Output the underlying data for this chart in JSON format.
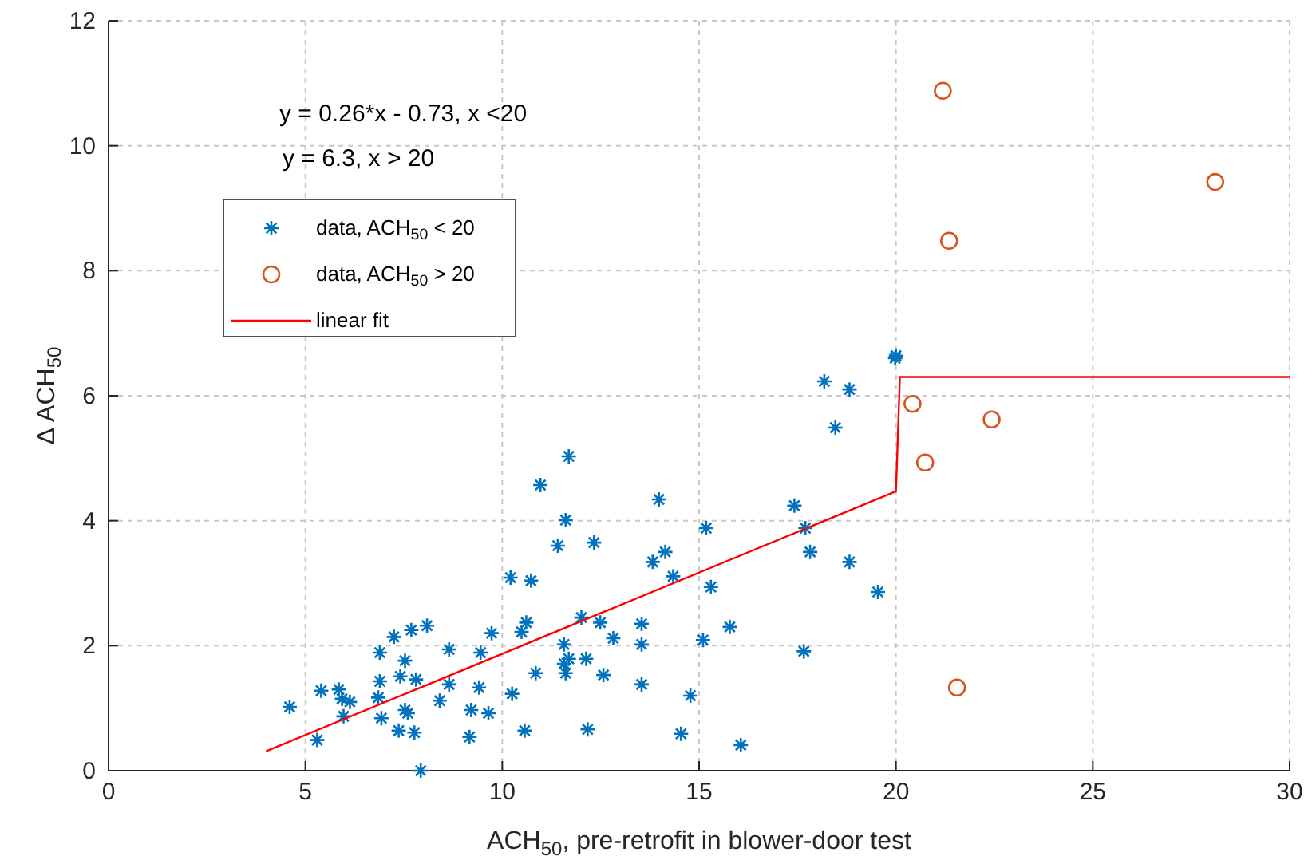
{
  "chart_data": {
    "type": "scatter",
    "xlabel": "ACH$_{50}$, pre-retrofit in blower-door test",
    "ylabel": "Δ ACH$_{50}$",
    "xlim": [
      0,
      30
    ],
    "ylim": [
      0,
      12
    ],
    "xticks": [
      0,
      5,
      10,
      15,
      20,
      25,
      30
    ],
    "yticks": [
      0,
      2,
      4,
      6,
      8,
      10,
      12
    ],
    "grid": true,
    "legend": "top left",
    "annotations": [
      "y = 0.26*x - 0.73, x <20",
      "y = 6.3, x > 20"
    ],
    "series": [
      {
        "name": "data, ACH$_{50}$ < 20",
        "color": "#0072bd",
        "marker": "cross",
        "x": [
          4.6,
          5.3,
          5.4,
          5.85,
          5.93,
          6.13,
          5.97,
          6.93,
          6.85,
          6.89,
          6.89,
          7.53,
          7.25,
          7.69,
          8.09,
          7.41,
          7.81,
          7.37,
          7.77,
          7.53,
          7.6,
          7.93,
          8.41,
          8.65,
          8.65,
          9.45,
          9.21,
          9.17,
          9.41,
          9.65,
          9.73,
          10.25,
          10.57,
          10.21,
          11.69,
          10.97,
          13.98,
          11.61,
          15.18,
          11.41,
          12.33,
          13.82,
          14.14,
          14.34,
          10.73,
          15.3,
          10.61,
          10.49,
          12.01,
          12.49,
          12.82,
          13.54,
          13.54,
          15.1,
          15.78,
          11.57,
          11.69,
          11.57,
          11.61,
          12.13,
          12.57,
          10.85,
          13.54,
          14.78,
          12.17,
          14.54,
          16.06,
          17.42,
          17.7,
          17.82,
          17.66,
          19.98,
          20.0,
          18.18,
          18.82,
          18.46,
          18.82,
          19.54
        ],
        "values": [
          1.02,
          0.49,
          1.28,
          1.3,
          1.15,
          1.1,
          0.87,
          0.84,
          1.17,
          1.43,
          1.89,
          1.76,
          2.14,
          2.25,
          2.32,
          1.51,
          1.46,
          0.64,
          0.61,
          0.97,
          0.92,
          0.0,
          1.12,
          1.94,
          1.38,
          1.89,
          0.97,
          0.54,
          1.33,
          0.92,
          2.2,
          1.23,
          0.64,
          3.09,
          5.03,
          4.57,
          4.34,
          4.01,
          3.88,
          3.6,
          3.65,
          3.34,
          3.5,
          3.11,
          3.04,
          2.94,
          2.37,
          2.22,
          2.45,
          2.37,
          2.12,
          2.35,
          2.02,
          2.09,
          2.3,
          2.02,
          1.79,
          1.71,
          1.56,
          1.79,
          1.53,
          1.56,
          1.38,
          1.2,
          0.66,
          0.59,
          0.41,
          4.24,
          3.88,
          3.5,
          1.91,
          6.6,
          6.64,
          6.23,
          6.1,
          5.49,
          3.34,
          2.86
        ]
      },
      {
        "name": "data, ACH$_{50}$ > 20",
        "color": "#d95319",
        "marker": "circle",
        "x": [
          20.42,
          20.74,
          21.55,
          21.19,
          21.35,
          22.43,
          28.11
        ],
        "values": [
          5.87,
          4.93,
          1.33,
          10.88,
          8.48,
          5.62,
          9.42
        ]
      },
      {
        "name": "linear fit",
        "type": "line",
        "color": "#ff0000",
        "marker": "none",
        "x": [
          4,
          20,
          20.1,
          30
        ],
        "values": [
          0.31,
          4.47,
          6.3,
          6.3
        ]
      }
    ]
  }
}
